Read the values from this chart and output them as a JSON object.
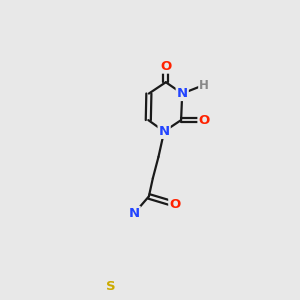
{
  "background_color": "#e8e8e8",
  "bond_color": "#1a1a1a",
  "bond_width": 1.6,
  "atom_colors": {
    "O": "#ff2200",
    "N": "#2244ff",
    "S": "#ccaa00",
    "H": "#888888",
    "C": "#1a1a1a"
  },
  "font_size": 8.5,
  "fig_width": 3.0,
  "fig_height": 3.0,
  "dpi": 100
}
